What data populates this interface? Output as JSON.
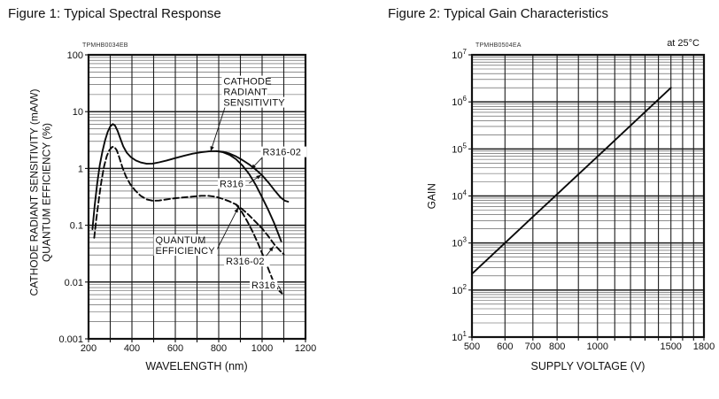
{
  "figure1": {
    "title": "Figure 1: Typical Spectral Response",
    "code": "TPMHB0034EB",
    "y_axis_label_line1": "CATHODE RADIANT SENSITIVITY (mA/W)",
    "y_axis_label_line2": "QUANTUM EFFICIENCY (%)",
    "x_axis_label": "WAVELENGTH (nm)"
  },
  "figure2": {
    "title": "Figure 2: Typical Gain Characteristics",
    "code": "TPMHB0504EA",
    "condition": "at 25°C",
    "y_axis_label": "GAIN",
    "x_axis_label": "SUPPLY VOLTAGE (V)"
  },
  "chart_data": [
    {
      "id": "spectral-response",
      "type": "line",
      "title": "Figure 1: Typical Spectral Response",
      "doc_code": "TPMHB0034EB",
      "xlabel": "WAVELENGTH (nm)",
      "ylabel": "CATHODE RADIANT SENSITIVITY (mA/W) / QUANTUM EFFICIENCY (%)",
      "x_scale": "linear",
      "y_scale": "log",
      "xlim": [
        200,
        1200
      ],
      "ylim": [
        0.001,
        100
      ],
      "grid": true,
      "legend_position": "none",
      "x_ticks": [
        {
          "v": 200,
          "label": "200"
        },
        {
          "v": 400,
          "label": "400"
        },
        {
          "v": 600,
          "label": "600"
        },
        {
          "v": 800,
          "label": "800"
        },
        {
          "v": 1000,
          "label": "1000"
        },
        {
          "v": 1200,
          "label": "1200"
        }
      ],
      "x_grid": [
        300,
        400,
        500,
        600,
        700,
        800,
        900,
        1000,
        1100
      ],
      "y_ticks": [
        {
          "v": 100,
          "label": "100"
        },
        {
          "v": 10,
          "label": "10"
        },
        {
          "v": 1,
          "label": "1"
        },
        {
          "v": 0.1,
          "label": "0.1"
        },
        {
          "v": 0.01,
          "label": "0.01"
        },
        {
          "v": 0.001,
          "label": "0.001"
        }
      ],
      "series": [
        {
          "id": "r316-02-cathode-radiant-sensitivity",
          "name": "R316-02 cathode radiant sensitivity (mA/W)",
          "style": "solid",
          "points": [
            [
              218,
              0.085
            ],
            [
              228,
              0.22
            ],
            [
              240,
              0.55
            ],
            [
              252,
              1.15
            ],
            [
              264,
              2.0
            ],
            [
              276,
              3.1
            ],
            [
              288,
              4.4
            ],
            [
              300,
              5.5
            ],
            [
              312,
              6.05
            ],
            [
              322,
              5.7
            ],
            [
              334,
              4.6
            ],
            [
              346,
              3.4
            ],
            [
              360,
              2.45
            ],
            [
              376,
              1.9
            ],
            [
              395,
              1.58
            ],
            [
              418,
              1.38
            ],
            [
              442,
              1.27
            ],
            [
              468,
              1.21
            ],
            [
              495,
              1.22
            ],
            [
              525,
              1.28
            ],
            [
              560,
              1.38
            ],
            [
              600,
              1.52
            ],
            [
              640,
              1.67
            ],
            [
              680,
              1.82
            ],
            [
              720,
              1.93
            ],
            [
              755,
              2.0
            ],
            [
              790,
              2.02
            ],
            [
              820,
              1.96
            ],
            [
              850,
              1.83
            ],
            [
              880,
              1.63
            ],
            [
              910,
              1.4
            ],
            [
              940,
              1.18
            ],
            [
              970,
              0.96
            ],
            [
              1000,
              0.76
            ],
            [
              1030,
              0.56
            ],
            [
              1060,
              0.4
            ],
            [
              1085,
              0.31
            ],
            [
              1105,
              0.27
            ],
            [
              1120,
              0.26
            ]
          ]
        },
        {
          "id": "r316-cathode-radiant-sensitivity",
          "name": "R316 cathode radiant sensitivity (mA/W)",
          "style": "solid",
          "points": [
            [
              790,
              2.02
            ],
            [
              820,
              1.93
            ],
            [
              850,
              1.73
            ],
            [
              880,
              1.45
            ],
            [
              910,
              1.12
            ],
            [
              940,
              0.8
            ],
            [
              970,
              0.52
            ],
            [
              1000,
              0.31
            ],
            [
              1030,
              0.18
            ],
            [
              1055,
              0.11
            ],
            [
              1075,
              0.07
            ],
            [
              1088,
              0.052
            ]
          ]
        },
        {
          "id": "r316-02-quantum-efficiency",
          "name": "R316-02 quantum efficiency (%)",
          "style": "dashed",
          "points": [
            [
              226,
              0.06
            ],
            [
              236,
              0.13
            ],
            [
              248,
              0.3
            ],
            [
              260,
              0.62
            ],
            [
              272,
              1.1
            ],
            [
              284,
              1.65
            ],
            [
              296,
              2.1
            ],
            [
              308,
              2.38
            ],
            [
              318,
              2.42
            ],
            [
              330,
              2.1
            ],
            [
              342,
              1.55
            ],
            [
              356,
              1.05
            ],
            [
              372,
              0.73
            ],
            [
              392,
              0.53
            ],
            [
              415,
              0.41
            ],
            [
              440,
              0.33
            ],
            [
              468,
              0.285
            ],
            [
              495,
              0.27
            ],
            [
              525,
              0.272
            ],
            [
              560,
              0.285
            ],
            [
              600,
              0.3
            ],
            [
              640,
              0.31
            ],
            [
              680,
              0.32
            ],
            [
              720,
              0.33
            ],
            [
              750,
              0.33
            ],
            [
              790,
              0.315
            ],
            [
              820,
              0.29
            ],
            [
              850,
              0.262
            ],
            [
              880,
              0.232
            ],
            [
              910,
              0.19
            ],
            [
              940,
              0.15
            ],
            [
              970,
              0.115
            ],
            [
              1000,
              0.088
            ],
            [
              1030,
              0.063
            ],
            [
              1060,
              0.044
            ],
            [
              1085,
              0.035
            ],
            [
              1100,
              0.031
            ]
          ]
        },
        {
          "id": "r316-quantum-efficiency",
          "name": "R316 quantum efficiency (%)",
          "style": "dashed",
          "points": [
            [
              880,
              0.232
            ],
            [
              905,
              0.175
            ],
            [
              930,
              0.12
            ],
            [
              955,
              0.079
            ],
            [
              980,
              0.049
            ],
            [
              1005,
              0.029
            ],
            [
              1030,
              0.0165
            ],
            [
              1055,
              0.0095
            ],
            [
              1075,
              0.0072
            ],
            [
              1092,
              0.0063
            ]
          ]
        }
      ],
      "annotations": [
        {
          "id": "cathode-radiant-sensitivity-label",
          "lines": [
            "CATHODE",
            "RADIANT",
            "SENSITIVITY"
          ],
          "at": [
            822,
            30
          ],
          "leader": {
            "from": [
              829,
              12
            ],
            "to": [
              763,
              2.0
            ],
            "arrow": true
          }
        },
        {
          "id": "r316-02-sensitivity-label",
          "lines": [
            "R316-02"
          ],
          "at": [
            1002,
            1.7
          ],
          "leader": {
            "from": [
              998,
              1.52
            ],
            "to": [
              949,
              0.97
            ],
            "arrow": true
          }
        },
        {
          "id": "r316-sensitivity-label",
          "lines": [
            "R316"
          ],
          "at": [
            804,
            0.47
          ],
          "leader": {
            "from": [
              940,
              0.55
            ],
            "to": [
              996,
              0.77
            ],
            "arrow": true
          }
        },
        {
          "id": "quantum-efficiency-label",
          "lines": [
            "QUANTUM",
            "EFFICIENCY"
          ],
          "at": [
            508,
            0.048
          ],
          "leader": {
            "from": [
              783,
              0.032
            ],
            "to": [
              890,
              0.205
            ],
            "arrow": true
          }
        },
        {
          "id": "r316-02-qe-label",
          "lines": [
            "R316-02"
          ],
          "at": [
            833,
            0.0202
          ],
          "leader": {
            "from": [
              1004,
              0.0243
            ],
            "to": [
              1053,
              0.0425
            ],
            "arrow": true
          }
        },
        {
          "id": "r316-qe-label",
          "lines": [
            "R316"
          ],
          "at": [
            951,
            0.0077
          ],
          "leader": {
            "from": [
              1075,
              0.0086
            ],
            "to": [
              1092,
              0.0066
            ],
            "arrow": false
          }
        }
      ]
    },
    {
      "id": "gain-characteristics",
      "type": "line",
      "title": "Figure 2: Typical Gain Characteristics",
      "doc_code": "TPMHB0504EA",
      "condition": "at 25°C",
      "xlabel": "SUPPLY VOLTAGE (V)",
      "ylabel": "GAIN",
      "x_scale": "log",
      "y_scale": "log",
      "xlim": [
        500,
        1800
      ],
      "ylim": [
        10,
        10000000
      ],
      "grid": true,
      "legend_position": "none",
      "x_ticks": [
        {
          "v": 500,
          "label": "500"
        },
        {
          "v": 600,
          "label": "600"
        },
        {
          "v": 700,
          "label": "700"
        },
        {
          "v": 800,
          "label": "800"
        },
        {
          "v": 1000,
          "label": "1000"
        },
        {
          "v": 1500,
          "label": "1500"
        },
        {
          "v": 1800,
          "label": "1800"
        }
      ],
      "x_grid": [
        600,
        700,
        800,
        900,
        1000,
        1100,
        1200,
        1300,
        1400,
        1500,
        1600,
        1700
      ],
      "y_ticks": [
        {
          "v": 10000000,
          "label": "10",
          "sup": "7"
        },
        {
          "v": 1000000,
          "label": "10",
          "sup": "6"
        },
        {
          "v": 100000,
          "label": "10",
          "sup": "5"
        },
        {
          "v": 10000,
          "label": "10",
          "sup": "4"
        },
        {
          "v": 1000,
          "label": "10",
          "sup": "3"
        },
        {
          "v": 100,
          "label": "10",
          "sup": "2"
        },
        {
          "v": 10,
          "label": "10",
          "sup": "1"
        }
      ],
      "series": [
        {
          "id": "gain",
          "name": "Gain vs supply voltage",
          "style": "solid",
          "points": [
            [
              500,
              220
            ],
            [
              700,
              3600
            ],
            [
              1000,
              69000
            ],
            [
              1500,
              2000000
            ]
          ]
        }
      ],
      "annotations": []
    }
  ]
}
